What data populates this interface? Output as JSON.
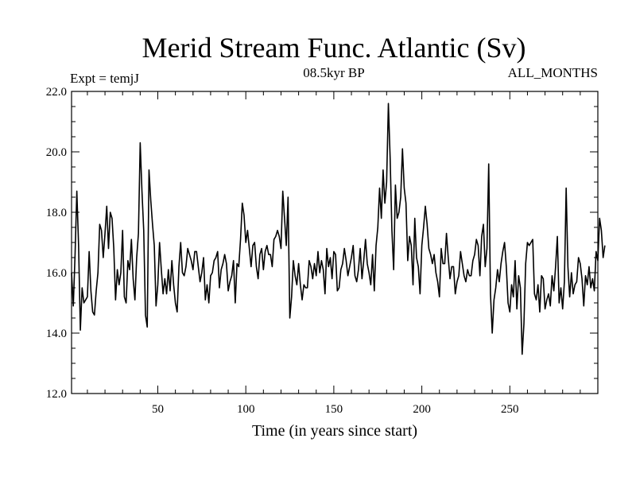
{
  "chart_data": {
    "type": "line",
    "title": "Merid Stream Func. Atlantic (Sv)",
    "subtitle_left": "Expt = temjJ",
    "subtitle_center": "08.5kyr BP",
    "subtitle_right": "ALL_MONTHS",
    "xlabel": "Time (in years since start)",
    "ylabel": "",
    "xlim": [
      1,
      300
    ],
    "ylim": [
      12.0,
      22.0
    ],
    "x_ticks": [
      50,
      100,
      150,
      200,
      250
    ],
    "x_tick_labels": [
      "50",
      "100",
      "150",
      "200",
      "250"
    ],
    "y_ticks": [
      12,
      14,
      16,
      18,
      20,
      22
    ],
    "y_tick_labels": [
      "12.0",
      "14.0",
      "16.0",
      "18.0",
      "20.0",
      "22.0"
    ],
    "x_minor_step": 10,
    "y_minor_step": 0.5,
    "grid": false,
    "series": [
      {
        "name": "Merid Stream Func. Atlantic",
        "color": "#000000",
        "x_start": 1,
        "x_step": 1,
        "values": [
          16.0,
          14.9,
          16.6,
          18.7,
          16.9,
          14.1,
          15.5,
          15.0,
          15.1,
          15.2,
          16.7,
          15.4,
          14.7,
          14.6,
          15.4,
          16.0,
          17.6,
          17.4,
          16.5,
          17.3,
          18.2,
          16.8,
          18.0,
          17.8,
          16.8,
          15.1,
          16.1,
          15.6,
          16.0,
          17.4,
          15.2,
          15.0,
          16.4,
          16.1,
          17.1,
          15.8,
          15.1,
          16.5,
          17.3,
          20.3,
          18.7,
          17.4,
          14.6,
          14.2,
          19.4,
          18.4,
          17.6,
          16.9,
          14.9,
          15.6,
          17.0,
          16.1,
          15.3,
          15.8,
          15.3,
          16.1,
          15.4,
          16.4,
          15.6,
          15.0,
          14.7,
          16.2,
          17.0,
          16.0,
          15.9,
          16.2,
          16.8,
          16.6,
          16.4,
          16.1,
          16.7,
          16.7,
          16.2,
          15.7,
          16.0,
          16.5,
          15.1,
          15.6,
          15.0,
          15.9,
          16.0,
          16.4,
          16.5,
          16.7,
          15.5,
          16.1,
          16.3,
          16.6,
          16.3,
          15.4,
          15.7,
          15.9,
          16.4,
          15.0,
          16.3,
          16.2,
          17.1,
          18.3,
          17.9,
          17.0,
          17.4,
          16.8,
          16.2,
          16.9,
          17.0,
          16.2,
          15.8,
          16.6,
          16.8,
          16.1,
          16.7,
          16.9,
          16.6,
          16.6,
          16.2,
          17.1,
          17.2,
          17.4,
          17.2,
          16.8,
          18.7,
          17.8,
          16.9,
          18.5,
          14.5,
          15.2,
          16.4,
          15.9,
          15.6,
          16.3,
          15.6,
          15.1,
          15.6,
          15.5,
          15.5,
          16.4,
          16.2,
          15.8,
          16.3,
          15.9,
          16.7,
          16.0,
          16.4,
          16.1,
          15.3,
          16.8,
          16.2,
          16.5,
          15.8,
          16.7,
          16.6,
          15.4,
          15.5,
          16.1,
          16.3,
          16.8,
          16.4,
          15.9,
          16.2,
          16.5,
          16.9,
          15.9,
          15.7,
          16.1,
          16.8,
          15.8,
          16.4,
          17.1,
          16.3,
          16.0,
          15.6,
          16.6,
          15.4,
          16.9,
          17.5,
          18.8,
          17.8,
          19.4,
          18.3,
          19.0,
          21.6,
          19.8,
          17.4,
          16.1,
          18.9,
          17.8,
          18.0,
          18.5,
          20.1,
          18.8,
          18.3,
          16.4,
          17.2,
          16.9,
          15.6,
          17.8,
          16.5,
          16.2,
          15.3,
          16.9,
          17.5,
          18.2,
          17.6,
          16.8,
          16.6,
          16.3,
          16.6,
          16.0,
          15.7,
          15.2,
          16.8,
          16.3,
          16.3,
          17.3,
          16.5,
          15.8,
          16.2,
          16.2,
          15.3,
          15.7,
          15.9,
          16.7,
          16.3,
          15.9,
          15.7,
          16.1,
          15.9,
          15.9,
          16.4,
          16.6,
          17.1,
          16.9,
          15.9,
          17.2,
          17.6,
          16.2,
          16.8,
          19.6,
          15.3,
          14.0,
          15.1,
          15.5,
          16.1,
          15.7,
          16.3,
          16.7,
          17.0,
          16.2,
          15.0,
          14.7,
          15.6,
          15.2,
          16.4,
          14.8,
          15.9,
          15.5,
          13.3,
          14.3,
          16.3,
          17.0,
          16.9,
          17.0,
          17.1,
          15.3,
          15.1,
          15.6,
          14.7,
          15.9,
          15.8,
          14.8,
          15.1,
          15.3,
          14.9,
          15.9,
          15.4,
          16.2,
          17.2,
          15.0,
          15.5,
          14.8,
          15.7,
          18.8,
          16.2,
          15.2,
          16.0,
          15.3,
          15.6,
          15.7,
          16.5,
          16.3,
          15.8,
          14.9,
          15.9,
          15.6,
          16.2,
          15.5,
          15.8,
          15.4,
          16.7,
          16.4,
          17.8,
          17.4,
          16.5,
          16.9
        ]
      }
    ]
  }
}
